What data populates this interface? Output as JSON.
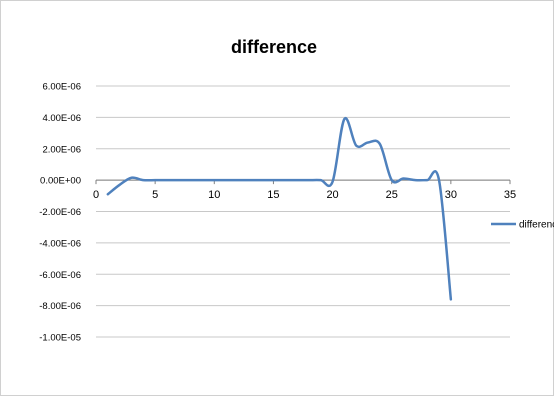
{
  "chart_data": {
    "type": "line",
    "title": "difference",
    "xlabel": "",
    "ylabel": "",
    "xlim": [
      0,
      35
    ],
    "ylim": [
      -1e-05,
      6e-06
    ],
    "x_ticks": [
      0,
      5,
      10,
      15,
      20,
      25,
      30,
      35
    ],
    "x_tick_labels": [
      "0",
      "5",
      "10",
      "15",
      "20",
      "25",
      "30",
      "35"
    ],
    "y_ticks": [
      6e-06,
      4e-06,
      2e-06,
      0,
      -2e-06,
      -4e-06,
      -6e-06,
      -8e-06,
      -1e-05
    ],
    "y_tick_labels": [
      "6.00E-06",
      "4.00E-06",
      "2.00E-06",
      "0.00E+00",
      "-2.00E-06",
      "-4.00E-06",
      "-6.00E-06",
      "-8.00E-06",
      "-1.00E-05"
    ],
    "grid": true,
    "legend_position": "right",
    "series": [
      {
        "name": "difference",
        "color": "#4f81bd",
        "x": [
          1,
          2,
          3,
          4,
          5,
          6,
          7,
          8,
          9,
          10,
          11,
          12,
          13,
          14,
          15,
          16,
          17,
          18,
          19,
          20,
          21,
          22,
          23,
          24,
          25,
          26,
          27,
          28,
          29,
          30
        ],
        "y": [
          -9e-07,
          -3e-07,
          1.5e-07,
          0,
          0,
          0,
          0,
          0,
          0,
          0,
          0,
          0,
          0,
          0,
          0,
          0,
          0,
          0,
          0,
          -1e-07,
          3.9e-06,
          2.2e-06,
          2.4e-06,
          2.3e-06,
          0,
          1e-07,
          0,
          0,
          0,
          -7.6e-06
        ]
      }
    ]
  }
}
